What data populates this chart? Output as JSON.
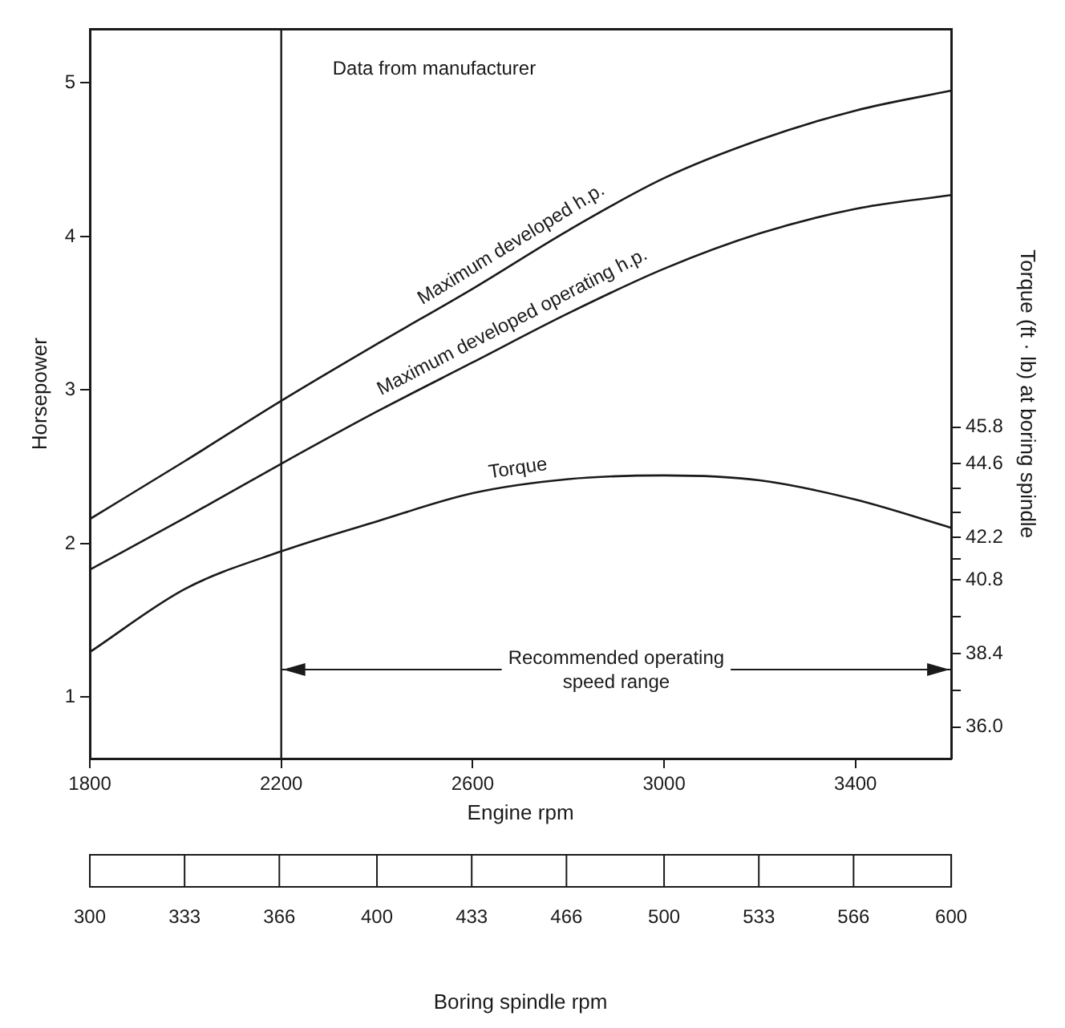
{
  "chart_data": {
    "type": "line",
    "annotations": [
      "Data from manufacturer",
      {
        "text": "Recommended operating speed range",
        "x": 2200,
        "y": 1.18
      }
    ],
    "xlabel": "Engine rpm",
    "ylabel": "Horsepower",
    "y2label": "Torque (ft · lb) at boring spindle",
    "x2label": "Boring spindle rpm",
    "xlim": [
      1800,
      3600
    ],
    "xticks": [
      1800,
      2200,
      2600,
      3000,
      3400
    ],
    "ylim": [
      0.6,
      5.35
    ],
    "yticks": [
      1,
      2,
      3,
      4,
      5
    ],
    "y2lim": [
      34.97,
      58.8
    ],
    "y2ticks": [
      {
        "value": 45.8,
        "label": "45.8"
      },
      {
        "value": 44.6,
        "label": "44.6"
      },
      {
        "value": 43.8,
        "label": null
      },
      {
        "value": 43.0,
        "label": null
      },
      {
        "value": 42.2,
        "label": "42.2"
      },
      {
        "value": 41.5,
        "label": null
      },
      {
        "value": 40.8,
        "label": "40.8"
      },
      {
        "value": 39.6,
        "label": null
      },
      {
        "value": 38.4,
        "label": "38.4"
      },
      {
        "value": 37.2,
        "label": null
      },
      {
        "value": 36.0,
        "label": "36.0"
      }
    ],
    "x2lim": [
      300,
      600
    ],
    "x2ticks": [
      300,
      333,
      366,
      400,
      433,
      466,
      500,
      533,
      566,
      600
    ],
    "x": [
      1800,
      2000,
      2200,
      2400,
      2600,
      2800,
      3000,
      3200,
      3400,
      3600
    ],
    "series": [
      {
        "name": "Maximum developed h.p.",
        "color": "#1a1a1a",
        "values": [
          2.16,
          2.54,
          2.93,
          3.3,
          3.66,
          4.04,
          4.38,
          4.63,
          4.82,
          4.95
        ]
      },
      {
        "name": "Maximum developed operating h.p.",
        "color": "#1a1a1a",
        "values": [
          1.83,
          2.17,
          2.52,
          2.86,
          3.18,
          3.5,
          3.79,
          4.02,
          4.18,
          4.27
        ]
      },
      {
        "name": "Torque",
        "color": "#1a1a1a",
        "axis": "y2",
        "values": [
          38.45,
          40.52,
          41.74,
          42.72,
          43.64,
          44.1,
          44.22,
          44.06,
          43.43,
          42.51
        ]
      }
    ],
    "ref_lines": [
      {
        "axis": "x",
        "value": 2200,
        "color": "#1a1a1a"
      }
    ],
    "grid": false,
    "legend": false,
    "marker": "none",
    "line_style": "solid"
  }
}
